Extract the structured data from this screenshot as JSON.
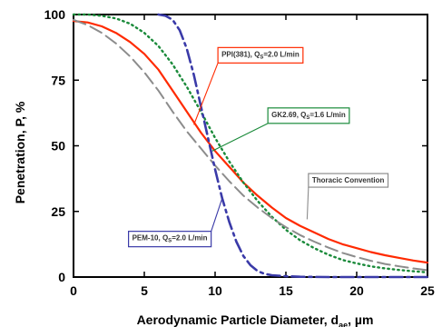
{
  "chart_data": {
    "type": "line",
    "xlabel": "Aerodynamic Particle Diameter, d",
    "xlabel_sub": "ae",
    "xlabel_unit": ", µm",
    "ylabel": "Penetration, P, %",
    "xlim": [
      0,
      25
    ],
    "ylim": [
      0,
      100
    ],
    "xticks": [
      0,
      5,
      10,
      15,
      20,
      25
    ],
    "yticks": [
      0,
      25,
      50,
      75,
      100
    ],
    "grid": false,
    "series": [
      {
        "name": "PPI(381), QS=2.0 L/min",
        "label_main": "PPI(381), Q",
        "label_sub": "S",
        "label_rest": "=2.0 L/min",
        "color": "#ff2a00",
        "dash": "solid",
        "x": [
          0,
          1,
          2,
          3,
          4,
          5,
          6,
          7,
          8,
          9,
          10,
          11,
          12,
          13,
          14,
          15,
          16,
          17,
          18,
          19,
          20,
          21,
          22,
          23,
          24,
          25
        ],
        "y": [
          97.5,
          97,
          95.5,
          93,
          89.5,
          85,
          79,
          71,
          63,
          55,
          48,
          42,
          36,
          31,
          26.5,
          22.5,
          19.5,
          17,
          14.5,
          12.5,
          11,
          9.5,
          8.3,
          7.3,
          6.3,
          5.5
        ]
      },
      {
        "name": "GK2.69, QS=1.6 L/min",
        "label_main": "GK2.69, Q",
        "label_sub": "S",
        "label_rest": "=1.6 L/min",
        "color": "#1a8a3a",
        "dash": "dotted",
        "x": [
          0,
          1,
          2,
          3,
          4,
          5,
          6,
          7,
          8,
          9,
          10,
          11,
          12,
          13,
          14,
          15,
          16,
          17,
          18,
          19,
          20,
          21,
          22,
          23,
          24,
          25
        ],
        "y": [
          100,
          100,
          99.5,
          98.5,
          96.5,
          93,
          88,
          81,
          72.5,
          63,
          53,
          44,
          36,
          29,
          23,
          18,
          14,
          11,
          8.5,
          6.5,
          5.2,
          4.1,
          3.3,
          2.7,
          2.2,
          1.8
        ]
      },
      {
        "name": "Thoracic Convention",
        "label_main": "Thoracic Convention",
        "label_sub": "",
        "label_rest": "",
        "color": "#8c8c8c",
        "dash": "longdash",
        "x": [
          0,
          1,
          2,
          3,
          4,
          5,
          6,
          7,
          8,
          9,
          10,
          11,
          12,
          13,
          14,
          15,
          16,
          17,
          18,
          19,
          20,
          21,
          22,
          23,
          24,
          25
        ],
        "y": [
          98,
          96,
          93,
          89,
          84,
          78,
          71,
          63,
          55.5,
          49,
          42.5,
          36.5,
          31,
          26.5,
          22.5,
          19,
          16,
          13.5,
          11.2,
          9.2,
          7.6,
          6.2,
          5,
          4.1,
          3.3,
          2.6
        ]
      },
      {
        "name": "PEM-10, QS=2.0 L/min",
        "label_main": "PEM-10, Q",
        "label_sub": "S",
        "label_rest": "=2.0 L/min",
        "color": "#3a3aa8",
        "dash": "dashdot",
        "x": [
          6,
          6.5,
          7,
          7.5,
          8,
          8.5,
          9,
          9.5,
          10,
          10.5,
          11,
          11.5,
          12,
          12.5,
          13,
          13.5,
          14,
          15,
          16,
          18,
          20,
          22,
          25
        ],
        "y": [
          100,
          99.5,
          98,
          94,
          87,
          77,
          65,
          53,
          41,
          30,
          21,
          13.5,
          8,
          4.5,
          2.3,
          1.2,
          0.7,
          0.3,
          0.1,
          0,
          0,
          0,
          0
        ]
      }
    ],
    "annotations": [
      {
        "series": 0,
        "box_x": 13.2,
        "box_y": 85,
        "pt_x": 8.5,
        "pt_y": 58
      },
      {
        "series": 1,
        "box_x": 16.6,
        "box_y": 62,
        "pt_x": 9.8,
        "pt_y": 48
      },
      {
        "series": 2,
        "box_x": 19.4,
        "box_y": 37,
        "pt_x": 16.5,
        "pt_y": 22
      },
      {
        "series": 3,
        "box_x": 6.8,
        "box_y": 15,
        "pt_x": 10.5,
        "pt_y": 30
      }
    ]
  }
}
